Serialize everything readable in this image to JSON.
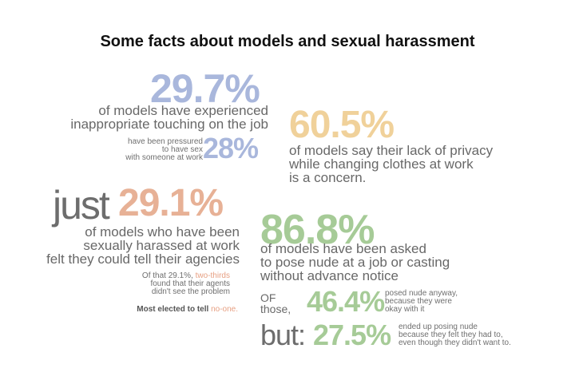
{
  "title": "Some facts about models and sexual harassment",
  "block1": {
    "stat": "29.7%",
    "lines": [
      "of models have experienced",
      "inappropriate touching on the job"
    ],
    "small_lines": [
      "have been pressured",
      "to have sex",
      "with someone at work"
    ],
    "stat2": "28%",
    "color": "#a9b7dc"
  },
  "block2": {
    "stat": "60.5%",
    "lines": [
      "of models say their lack of privacy",
      "while changing clothes at work",
      "is a concern."
    ],
    "color": "#f0d19a"
  },
  "block3": {
    "prefix": "just",
    "stat": "29.1%",
    "lines": [
      "of models who have been",
      "sexually harassed at work",
      "felt they could tell their agencies"
    ],
    "small_lead": "Of that 29.1%,",
    "small_accent": "two-thirds",
    "small_lines": [
      "found that their agents",
      "didn't see the problem"
    ],
    "bold_text": "Most elected to tell",
    "bold_accent": "no-one.",
    "color": "#e7b196"
  },
  "block4": {
    "stat": "86.8%",
    "lines": [
      "of models have been asked",
      "to pose nude at a job or casting",
      "without advance notice"
    ],
    "of_lines": [
      "OF",
      "those,"
    ],
    "stat2": "46.4%",
    "small2_lines": [
      "posed nude anyway,",
      "because they were",
      "okay with it"
    ],
    "but": "but:",
    "stat3": "27.5%",
    "small3_lines": [
      "ended up posing nude",
      "because they felt they had to,",
      "even though they didn't want to."
    ],
    "color": "#a6cb97"
  }
}
